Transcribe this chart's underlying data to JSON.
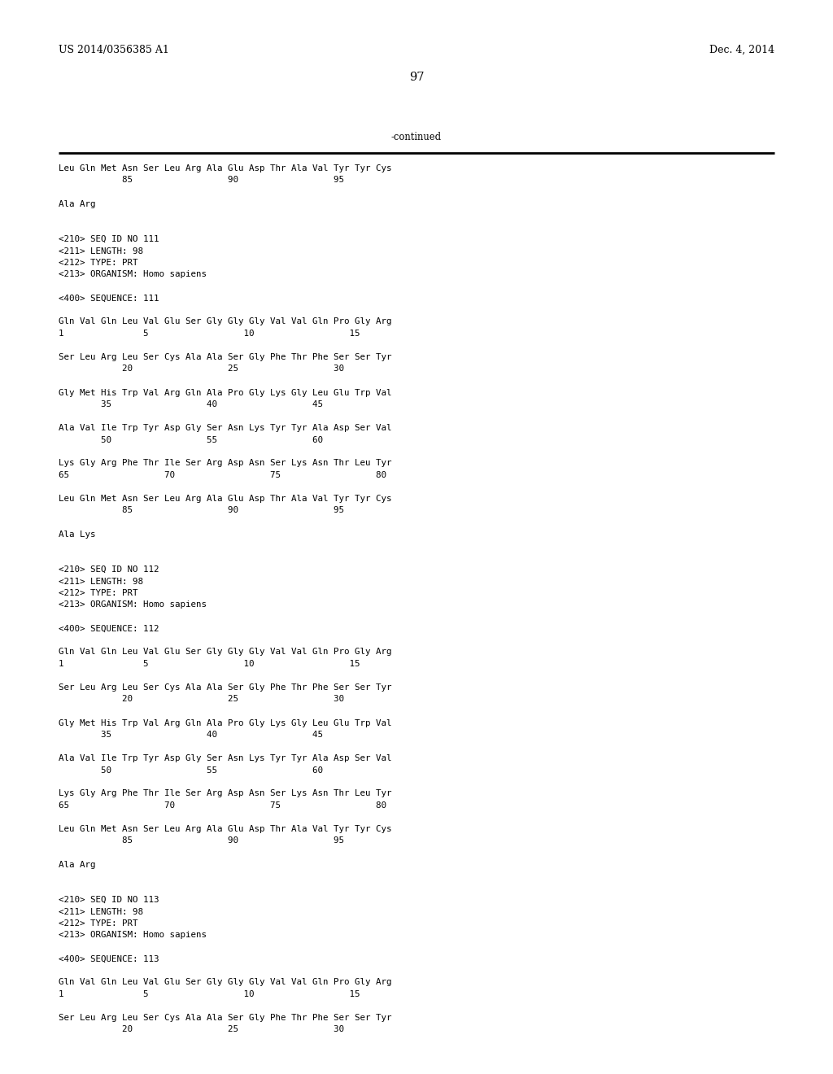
{
  "header_left": "US 2014/0356385 A1",
  "header_right": "Dec. 4, 2014",
  "page_number": "97",
  "continued_label": "-continued",
  "background_color": "#ffffff",
  "text_color": "#000000",
  "font_size": 7.8,
  "header_font_size": 9.0,
  "page_num_font_size": 10.5,
  "lines": [
    "Leu Gln Met Asn Ser Leu Arg Ala Glu Asp Thr Ala Val Tyr Tyr Cys",
    "            85                  90                  95",
    "",
    "Ala Arg",
    "",
    "",
    "<210> SEQ ID NO 111",
    "<211> LENGTH: 98",
    "<212> TYPE: PRT",
    "<213> ORGANISM: Homo sapiens",
    "",
    "<400> SEQUENCE: 111",
    "",
    "Gln Val Gln Leu Val Glu Ser Gly Gly Gly Val Val Gln Pro Gly Arg",
    "1               5                  10                  15",
    "",
    "Ser Leu Arg Leu Ser Cys Ala Ala Ser Gly Phe Thr Phe Ser Ser Tyr",
    "            20                  25                  30",
    "",
    "Gly Met His Trp Val Arg Gln Ala Pro Gly Lys Gly Leu Glu Trp Val",
    "        35                  40                  45",
    "",
    "Ala Val Ile Trp Tyr Asp Gly Ser Asn Lys Tyr Tyr Ala Asp Ser Val",
    "        50                  55                  60",
    "",
    "Lys Gly Arg Phe Thr Ile Ser Arg Asp Asn Ser Lys Asn Thr Leu Tyr",
    "65                  70                  75                  80",
    "",
    "Leu Gln Met Asn Ser Leu Arg Ala Glu Asp Thr Ala Val Tyr Tyr Cys",
    "            85                  90                  95",
    "",
    "Ala Lys",
    "",
    "",
    "<210> SEQ ID NO 112",
    "<211> LENGTH: 98",
    "<212> TYPE: PRT",
    "<213> ORGANISM: Homo sapiens",
    "",
    "<400> SEQUENCE: 112",
    "",
    "Gln Val Gln Leu Val Glu Ser Gly Gly Gly Val Val Gln Pro Gly Arg",
    "1               5                  10                  15",
    "",
    "Ser Leu Arg Leu Ser Cys Ala Ala Ser Gly Phe Thr Phe Ser Ser Tyr",
    "            20                  25                  30",
    "",
    "Gly Met His Trp Val Arg Gln Ala Pro Gly Lys Gly Leu Glu Trp Val",
    "        35                  40                  45",
    "",
    "Ala Val Ile Trp Tyr Asp Gly Ser Asn Lys Tyr Tyr Ala Asp Ser Val",
    "        50                  55                  60",
    "",
    "Lys Gly Arg Phe Thr Ile Ser Arg Asp Asn Ser Lys Asn Thr Leu Tyr",
    "65                  70                  75                  80",
    "",
    "Leu Gln Met Asn Ser Leu Arg Ala Glu Asp Thr Ala Val Tyr Tyr Cys",
    "            85                  90                  95",
    "",
    "Ala Arg",
    "",
    "",
    "<210> SEQ ID NO 113",
    "<211> LENGTH: 98",
    "<212> TYPE: PRT",
    "<213> ORGANISM: Homo sapiens",
    "",
    "<400> SEQUENCE: 113",
    "",
    "Gln Val Gln Leu Val Glu Ser Gly Gly Gly Val Val Gln Pro Gly Arg",
    "1               5                  10                  15",
    "",
    "Ser Leu Arg Leu Ser Cys Ala Ala Ser Gly Phe Thr Phe Ser Ser Tyr",
    "            20                  25                  30"
  ]
}
